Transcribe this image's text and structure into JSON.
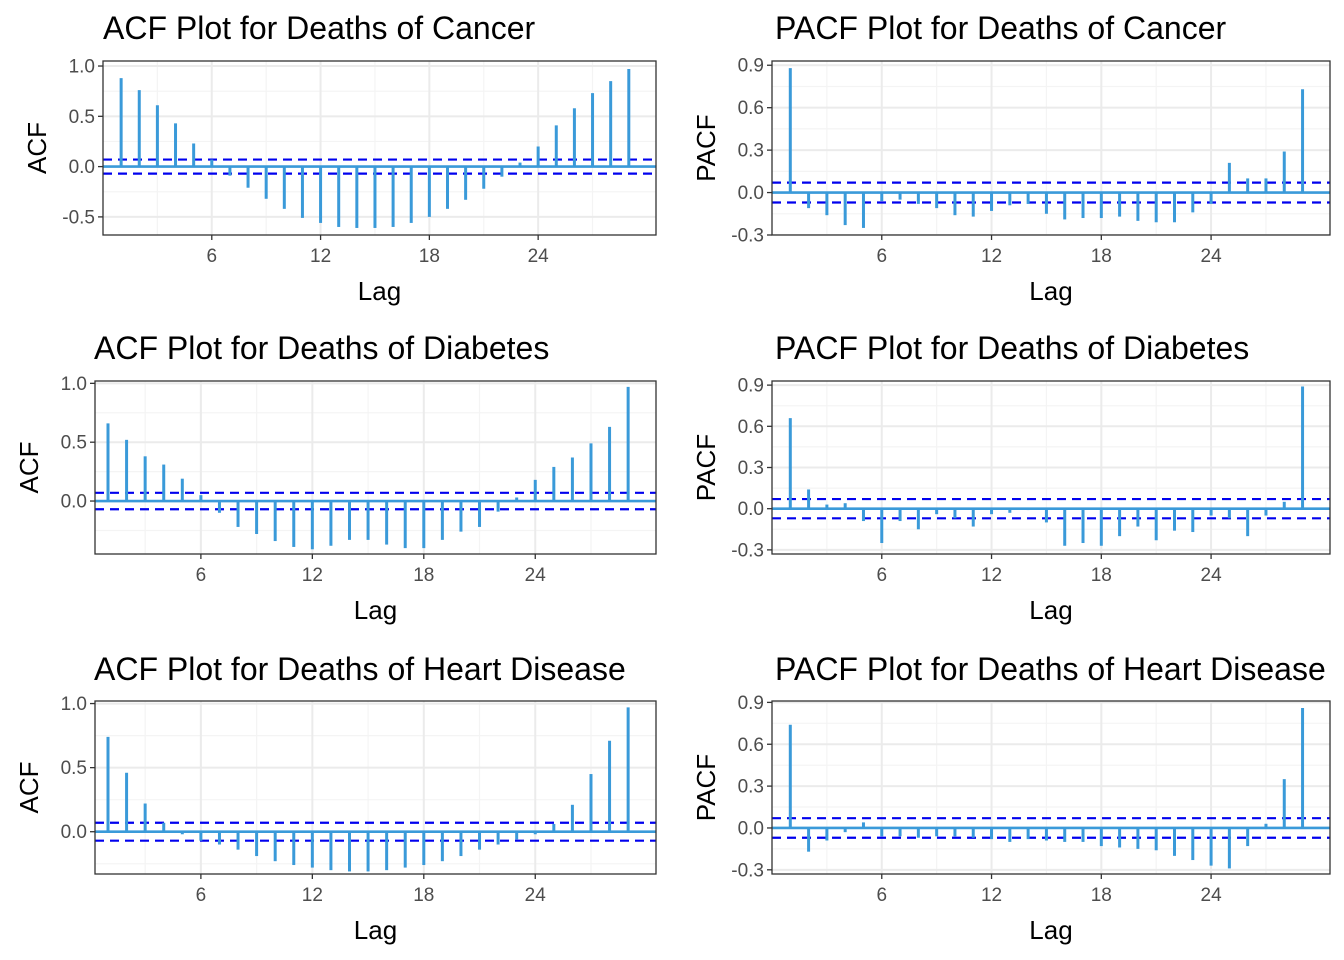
{
  "colors": {
    "bar": "#3a9ad9",
    "zero_line": "#3a9ad9",
    "ci_line": "#0000ee",
    "panel_border": "#333333",
    "grid_major": "#ebebeb",
    "grid_minor": "#f4f4f4"
  },
  "chart_data": [
    {
      "type": "bar",
      "title": "ACF Plot for Deaths of Cancer",
      "xlabel": "Lag",
      "ylabel": "ACF",
      "xlim": [
        0,
        30.5
      ],
      "ylim": [
        -0.68,
        1.05
      ],
      "x_ticks": [
        6,
        12,
        18,
        24
      ],
      "y_ticks": [
        -0.5,
        0.0,
        0.5,
        1.0
      ],
      "y_tick_labels": [
        "-0.5",
        "0.0",
        "0.5",
        "1.0"
      ],
      "ci": 0.07,
      "lags": [
        1,
        2,
        3,
        4,
        5,
        6,
        7,
        8,
        9,
        10,
        11,
        12,
        13,
        14,
        15,
        16,
        17,
        18,
        19,
        20,
        21,
        22,
        23,
        24,
        25,
        26,
        27,
        28,
        29,
        30
      ],
      "values": [
        0.88,
        0.76,
        0.61,
        0.43,
        0.23,
        0.07,
        -0.09,
        -0.21,
        -0.32,
        -0.42,
        -0.51,
        -0.56,
        -0.6,
        -0.61,
        -0.61,
        -0.6,
        -0.56,
        -0.5,
        -0.42,
        -0.33,
        -0.22,
        -0.1,
        0.04,
        0.2,
        0.41,
        0.58,
        0.73,
        0.85,
        0.97,
        0.0
      ]
    },
    {
      "type": "bar",
      "title": "PACF Plot for Deaths of Cancer",
      "xlabel": "Lag",
      "ylabel": "PACF",
      "xlim": [
        0,
        30.5
      ],
      "ylim": [
        -0.3,
        0.93
      ],
      "x_ticks": [
        6,
        12,
        18,
        24
      ],
      "y_ticks": [
        -0.3,
        0.0,
        0.3,
        0.6,
        0.9
      ],
      "y_tick_labels": [
        "-0.3",
        "0.0",
        "0.3",
        "0.6",
        "0.9"
      ],
      "ci": 0.07,
      "lags": [
        1,
        2,
        3,
        4,
        5,
        6,
        7,
        8,
        9,
        10,
        11,
        12,
        13,
        14,
        15,
        16,
        17,
        18,
        19,
        20,
        21,
        22,
        23,
        24,
        25,
        26,
        27,
        28,
        29
      ],
      "values": [
        0.88,
        -0.11,
        -0.16,
        -0.23,
        -0.25,
        -0.06,
        -0.05,
        -0.08,
        -0.11,
        -0.16,
        -0.17,
        -0.13,
        -0.09,
        -0.08,
        -0.15,
        -0.19,
        -0.18,
        -0.18,
        -0.17,
        -0.2,
        -0.21,
        -0.21,
        -0.14,
        -0.08,
        0.21,
        0.1,
        0.1,
        0.29,
        0.73
      ]
    },
    {
      "type": "bar",
      "title": "ACF Plot for Deaths of Diabetes",
      "xlabel": "Lag",
      "ylabel": "ACF",
      "xlim": [
        0.3,
        30.5
      ],
      "ylim": [
        -0.45,
        1.02
      ],
      "x_ticks": [
        6,
        12,
        18,
        24
      ],
      "y_ticks": [
        0.0,
        0.5,
        1.0
      ],
      "y_tick_labels": [
        "0.0",
        "0.5",
        "1.0"
      ],
      "ci": 0.07,
      "lags": [
        1,
        2,
        3,
        4,
        5,
        6,
        7,
        8,
        9,
        10,
        11,
        12,
        13,
        14,
        15,
        16,
        17,
        18,
        19,
        20,
        21,
        22,
        23,
        24,
        25,
        26,
        27,
        28,
        29
      ],
      "values": [
        0.66,
        0.52,
        0.38,
        0.31,
        0.19,
        0.05,
        -0.1,
        -0.22,
        -0.28,
        -0.34,
        -0.39,
        -0.41,
        -0.38,
        -0.33,
        -0.33,
        -0.37,
        -0.4,
        -0.4,
        -0.33,
        -0.26,
        -0.22,
        -0.09,
        0.03,
        0.18,
        0.29,
        0.37,
        0.49,
        0.63,
        0.97
      ]
    },
    {
      "type": "bar",
      "title": "PACF Plot for Deaths of Diabetes",
      "xlabel": "Lag",
      "ylabel": "PACF",
      "xlim": [
        0,
        30.5
      ],
      "ylim": [
        -0.33,
        0.93
      ],
      "x_ticks": [
        6,
        12,
        18,
        24
      ],
      "y_ticks": [
        -0.3,
        0.0,
        0.3,
        0.6,
        0.9
      ],
      "y_tick_labels": [
        "-0.3",
        "0.0",
        "0.3",
        "0.6",
        "0.9"
      ],
      "ci": 0.07,
      "lags": [
        1,
        2,
        3,
        4,
        5,
        6,
        7,
        8,
        9,
        10,
        11,
        12,
        13,
        14,
        15,
        16,
        17,
        18,
        19,
        20,
        21,
        22,
        23,
        24,
        25,
        26,
        27,
        28,
        29
      ],
      "values": [
        0.66,
        0.14,
        0.03,
        0.04,
        -0.09,
        -0.25,
        -0.09,
        -0.15,
        -0.04,
        -0.07,
        -0.13,
        -0.04,
        -0.03,
        -0.01,
        -0.1,
        -0.27,
        -0.25,
        -0.27,
        -0.2,
        -0.13,
        -0.23,
        -0.16,
        -0.17,
        -0.05,
        -0.07,
        -0.2,
        -0.05,
        0.05,
        0.89
      ]
    },
    {
      "type": "bar",
      "title": "ACF Plot for Deaths of Heart Disease",
      "xlabel": "Lag",
      "ylabel": "ACF",
      "xlim": [
        0.3,
        30.5
      ],
      "ylim": [
        -0.33,
        1.02
      ],
      "x_ticks": [
        6,
        12,
        18,
        24
      ],
      "y_ticks": [
        0.0,
        0.5,
        1.0
      ],
      "y_tick_labels": [
        "0.0",
        "0.5",
        "1.0"
      ],
      "ci": 0.07,
      "lags": [
        1,
        2,
        3,
        4,
        5,
        6,
        7,
        8,
        9,
        10,
        11,
        12,
        13,
        14,
        15,
        16,
        17,
        18,
        19,
        20,
        21,
        22,
        23,
        24,
        25,
        26,
        27,
        28,
        29
      ],
      "values": [
        0.74,
        0.46,
        0.22,
        0.07,
        -0.02,
        -0.07,
        -0.1,
        -0.14,
        -0.19,
        -0.23,
        -0.26,
        -0.28,
        -0.3,
        -0.31,
        -0.31,
        -0.3,
        -0.28,
        -0.26,
        -0.23,
        -0.19,
        -0.14,
        -0.1,
        -0.06,
        -0.02,
        0.06,
        0.21,
        0.45,
        0.71,
        0.97
      ]
    },
    {
      "type": "bar",
      "title": "PACF Plot for Deaths of Heart Disease",
      "xlabel": "Lag",
      "ylabel": "PACF",
      "xlim": [
        0,
        30.5
      ],
      "ylim": [
        -0.33,
        0.91
      ],
      "x_ticks": [
        6,
        12,
        18,
        24
      ],
      "y_ticks": [
        -0.3,
        0.0,
        0.3,
        0.6,
        0.9
      ],
      "y_tick_labels": [
        "-0.3",
        "0.0",
        "0.3",
        "0.6",
        "0.9"
      ],
      "ci": 0.07,
      "lags": [
        1,
        2,
        3,
        4,
        5,
        6,
        7,
        8,
        9,
        10,
        11,
        12,
        13,
        14,
        15,
        16,
        17,
        18,
        19,
        20,
        21,
        22,
        23,
        24,
        25,
        26,
        27,
        28,
        29
      ],
      "values": [
        0.74,
        -0.17,
        -0.09,
        -0.03,
        0.04,
        -0.06,
        -0.06,
        -0.07,
        -0.06,
        -0.06,
        -0.07,
        -0.08,
        -0.1,
        -0.08,
        -0.09,
        -0.1,
        -0.1,
        -0.13,
        -0.14,
        -0.15,
        -0.16,
        -0.2,
        -0.23,
        -0.27,
        -0.29,
        -0.13,
        0.03,
        0.35,
        0.86
      ]
    }
  ]
}
